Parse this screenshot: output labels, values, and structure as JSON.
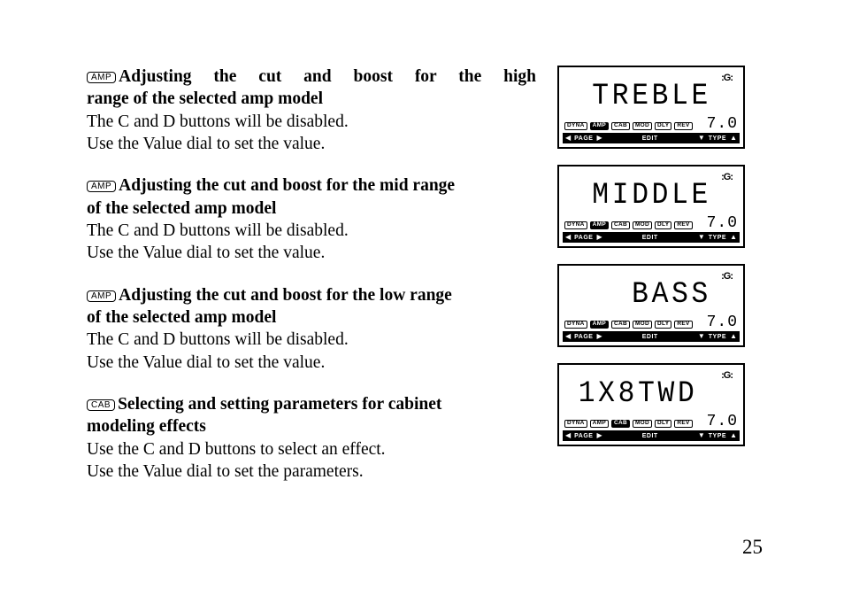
{
  "page_number": "25",
  "sections": [
    {
      "tag": "AMP",
      "heading_line1": "Adjusting  the  cut  and  boost  for  the  high",
      "heading_line2": "range of the selected amp model",
      "body1": "The C and D buttons will be disabled.",
      "body2": "Use the Value dial to set the value.",
      "justify_first": true
    },
    {
      "tag": "AMP",
      "heading_line1": "Adjusting the cut and boost for the mid range",
      "heading_line2": "of the selected amp model",
      "body1": "The C and D buttons will be disabled.",
      "body2": "Use the Value dial to set the value.",
      "justify_first": false
    },
    {
      "tag": "AMP",
      "heading_line1": "Adjusting the cut and boost for the low range",
      "heading_line2": "of the selected amp model",
      "body1": "The C and D buttons will be disabled.",
      "body2": "Use the Value dial to set the value.",
      "justify_first": false
    },
    {
      "tag": "CAB",
      "heading_line1": "Selecting and setting parameters for cabinet",
      "heading_line2": "modeling effects",
      "body1": "Use the C and D buttons to select an effect.",
      "body2": "Use the Value dial to set the parameters.",
      "justify_first": false
    }
  ],
  "displays": [
    {
      "main": "TREBLE",
      "value": "7.0",
      "align": "right",
      "highlight": 1
    },
    {
      "main": "MIDDLE",
      "value": "7.0",
      "align": "right",
      "highlight": 1
    },
    {
      "main": "BASS",
      "value": "7.0",
      "align": "right",
      "highlight": 1
    },
    {
      "main": "1X8TWD",
      "value": "7.0",
      "align": "left",
      "highlight": 2
    }
  ],
  "lcd_chips": [
    "DYNA",
    "AMP",
    "CAB",
    "MOD",
    "DLY",
    "REV"
  ],
  "lcd_bottom": {
    "page": "PAGE",
    "edit": "EDIT",
    "type": "TYPE"
  },
  "g_icon": ":G:",
  "colors": {
    "text": "#000000",
    "bg": "#ffffff",
    "thumb": "#b3b3b3"
  }
}
